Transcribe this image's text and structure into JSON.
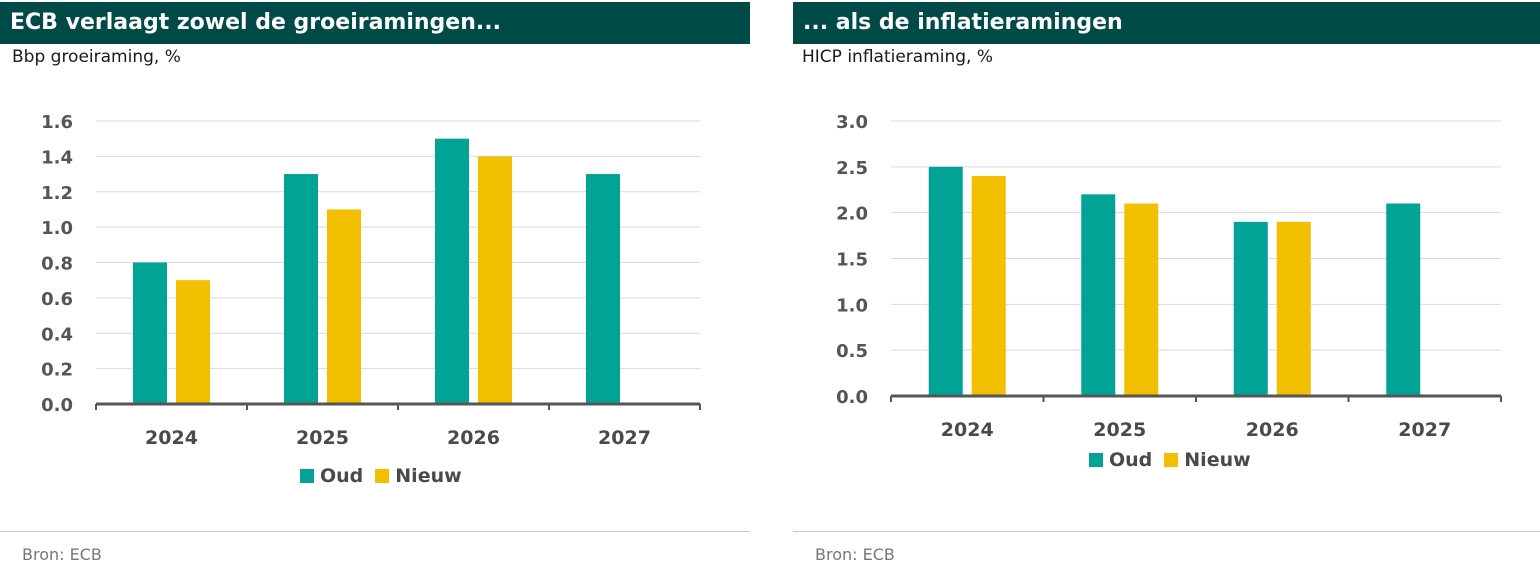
{
  "colors": {
    "oud": "#00a396",
    "nieuw": "#f2c000",
    "header_bg": "#004a48",
    "grid": "#d9d9d9",
    "axis": "#555555"
  },
  "legend": {
    "oud": "Oud",
    "nieuw": "Nieuw"
  },
  "panels": [
    {
      "title": "ECB verlaagt zowel de groeiramingen...",
      "subtitle": "Bbp groeiraming, %",
      "source": "Bron: ECB"
    },
    {
      "title": "... als de inflatieramingen",
      "subtitle": "HICP inflatieraming, %",
      "source": "Bron: ECB"
    }
  ],
  "chart_data": [
    {
      "type": "bar",
      "title": "ECB verlaagt zowel de groeiramingen...",
      "ylabel": "Bbp groeiraming, %",
      "categories": [
        "2024",
        "2025",
        "2026",
        "2027"
      ],
      "series": [
        {
          "name": "Oud",
          "values": [
            0.8,
            1.3,
            1.5,
            1.3
          ]
        },
        {
          "name": "Nieuw",
          "values": [
            0.7,
            1.1,
            1.4,
            null
          ]
        }
      ],
      "ylim": [
        0,
        1.6
      ],
      "yticks": [
        0.0,
        0.2,
        0.4,
        0.6,
        0.8,
        1.0,
        1.2,
        1.4,
        1.6
      ],
      "ytick_labels": [
        "0.0",
        "0.2",
        "0.4",
        "0.6",
        "0.8",
        "1.0",
        "1.2",
        "1.4",
        "1.6"
      ],
      "grid": true,
      "legend_position": "bottom"
    },
    {
      "type": "bar",
      "title": "... als de inflatieramingen",
      "ylabel": "HICP inflatieraming, %",
      "categories": [
        "2024",
        "2025",
        "2026",
        "2027"
      ],
      "series": [
        {
          "name": "Oud",
          "values": [
            2.5,
            2.2,
            1.9,
            2.1
          ]
        },
        {
          "name": "Nieuw",
          "values": [
            2.4,
            2.1,
            1.9,
            null
          ]
        }
      ],
      "ylim": [
        0,
        3.0
      ],
      "yticks": [
        0.0,
        0.5,
        1.0,
        1.5,
        2.0,
        2.5,
        3.0
      ],
      "ytick_labels": [
        "0.0",
        "0.5",
        "1.0",
        "1.5",
        "2.0",
        "2.5",
        "3.0"
      ],
      "grid": true,
      "legend_position": "bottom"
    }
  ]
}
